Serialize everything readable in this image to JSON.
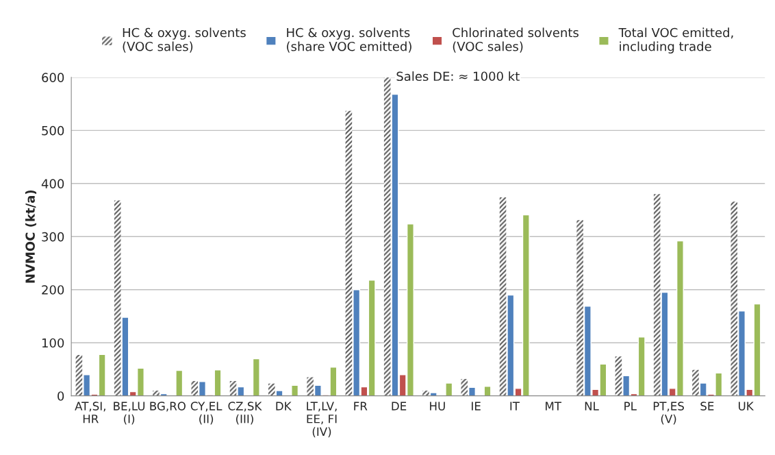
{
  "chart_data": {
    "type": "bar",
    "ylabel": "NVMOC (kt/a)",
    "categories": [
      "AT,SI,\nHR",
      "BE,LU\n(I)",
      "BG,RO",
      "CY,EL\n(II)",
      "CZ,SK\n(III)",
      "DK",
      "LT,LV,\nEE, FI\n(IV)",
      "FR",
      "DE",
      "HU",
      "IE",
      "IT",
      "MT",
      "NL",
      "PL",
      "PT,ES\n(V)",
      "SE",
      "UK"
    ],
    "series": [
      {
        "name": "HC & oxyg. solvents\n(VOC sales)",
        "color": "#595959",
        "values": [
          77,
          368,
          10,
          28,
          28,
          23,
          35,
          537,
          600,
          10,
          32,
          374,
          null,
          331,
          74,
          380,
          49,
          366
        ]
      },
      {
        "name": "HC & oxyg. solvents\n(share VOC emitted)",
        "color": "#4f81bd",
        "values": [
          40,
          148,
          4,
          27,
          17,
          10,
          20,
          200,
          568,
          6,
          16,
          190,
          null,
          169,
          38,
          195,
          24,
          160
        ]
      },
      {
        "name": "Chlorinated solvents\n(VOC sales)",
        "color": "#c0504d",
        "values": [
          3,
          8,
          1,
          2,
          1,
          1,
          2,
          17,
          40,
          1,
          1,
          14,
          null,
          12,
          4,
          14,
          3,
          12
        ]
      },
      {
        "name": "Total VOC emitted,\nincluding trade",
        "color": "#9bbb59",
        "values": [
          78,
          52,
          48,
          49,
          70,
          20,
          54,
          218,
          324,
          24,
          18,
          341,
          null,
          60,
          111,
          292,
          43,
          173
        ]
      }
    ],
    "ylim": [
      0,
      600
    ],
    "yticks": [
      0,
      100,
      200,
      300,
      400,
      500,
      600
    ],
    "grid": "y",
    "legend": "top",
    "annotations": [
      "Sales DE: ≈ 1000 kt"
    ]
  }
}
